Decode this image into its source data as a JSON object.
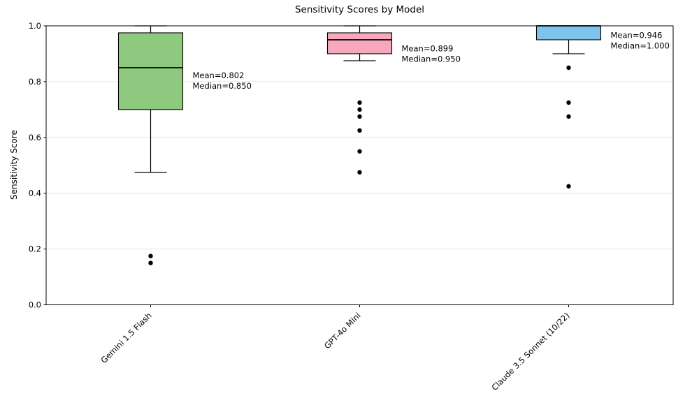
{
  "chart_data": {
    "type": "box",
    "title": "Sensitivity Scores by Model",
    "ylabel": "Sensitivity Score",
    "xlabel": "",
    "ylim": [
      0.0,
      1.0
    ],
    "yticks": [
      0.0,
      0.2,
      0.4,
      0.6,
      0.8,
      1.0
    ],
    "grid": "horizontal",
    "grid_color": "#e6e6e6",
    "categories": [
      "Gemini 1.5 Flash",
      "GPT-4o Mini",
      "Claude 3.5 Sonnet (10/22)"
    ],
    "series": [
      {
        "name": "Gemini 1.5 Flash",
        "color": "#8fc97f",
        "q1": 0.7,
        "median": 0.85,
        "q3": 0.975,
        "whisker_low": 0.475,
        "whisker_high": 1.0,
        "mean": 0.802,
        "outliers": [
          0.175,
          0.15
        ],
        "mean_label": "Mean=0.802",
        "median_label": "Median=0.850"
      },
      {
        "name": "GPT-4o Mini",
        "color": "#f7a8bc",
        "q1": 0.9,
        "median": 0.95,
        "q3": 0.975,
        "whisker_low": 0.875,
        "whisker_high": 1.0,
        "mean": 0.899,
        "outliers": [
          0.725,
          0.7,
          0.675,
          0.625,
          0.55,
          0.475
        ],
        "mean_label": "Mean=0.899",
        "median_label": "Median=0.950"
      },
      {
        "name": "Claude 3.5 Sonnet (10/22)",
        "color": "#7fc2ec",
        "q1": 0.95,
        "median": 1.0,
        "q3": 1.0,
        "whisker_low": 0.9,
        "whisker_high": 1.0,
        "mean": 0.946,
        "outliers": [
          0.85,
          0.725,
          0.675,
          0.425
        ],
        "mean_label": "Mean=0.946",
        "median_label": "Median=1.000"
      }
    ]
  }
}
